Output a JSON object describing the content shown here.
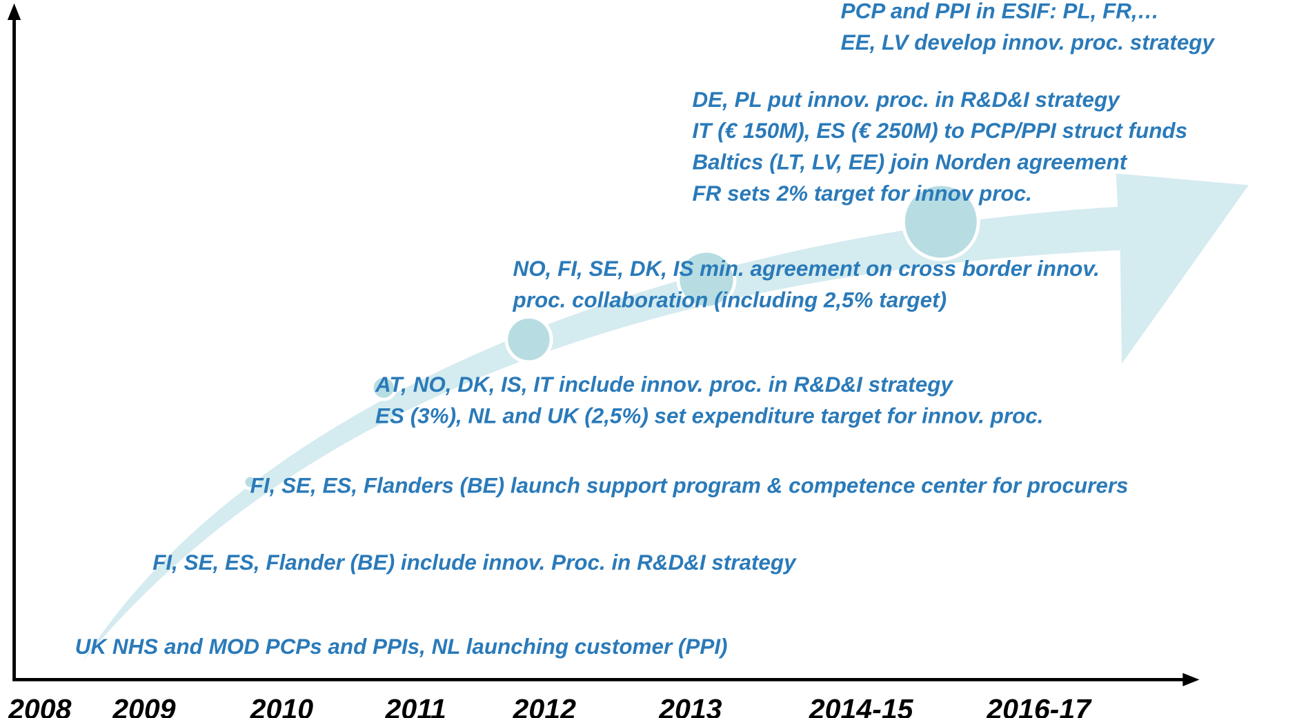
{
  "years": [
    "2008",
    "2009",
    "2010",
    "2011",
    "2012",
    "2013",
    "2014-15",
    "2016-17"
  ],
  "milestones": [
    {
      "lines": [
        "UK NHS and MOD PCPs and PPIs, NL launching customer (PPI)"
      ]
    },
    {
      "lines": [
        "FI, SE, ES, Flander (BE) include innov. Proc. in R&D&I strategy"
      ]
    },
    {
      "lines": [
        "FI, SE, ES, Flanders (BE) launch support program & competence center for procurers"
      ]
    },
    {
      "lines": [
        " AT, NO, DK, IS, IT include innov. proc. in R&D&I strategy",
        "ES (3%), NL and UK (2,5%) set expenditure target for innov. proc."
      ]
    },
    {
      "lines": [
        "NO, FI, SE, DK, IS min. agreement on cross border innov.",
        "proc. collaboration (including 2,5% target)"
      ]
    },
    {
      "lines": [
        "DE, PL put innov. proc. in R&D&I strategy",
        "IT (€ 150M), ES (€ 250M) to PCP/PPI struct funds",
        "Baltics (LT, LV, EE) join Norden agreement",
        "FR sets 2% target for innov proc."
      ]
    },
    {
      "lines": [
        "PCP and PPI in ESIF: PL, FR,…",
        "EE, LV develop innov. proc. strategy"
      ]
    }
  ]
}
